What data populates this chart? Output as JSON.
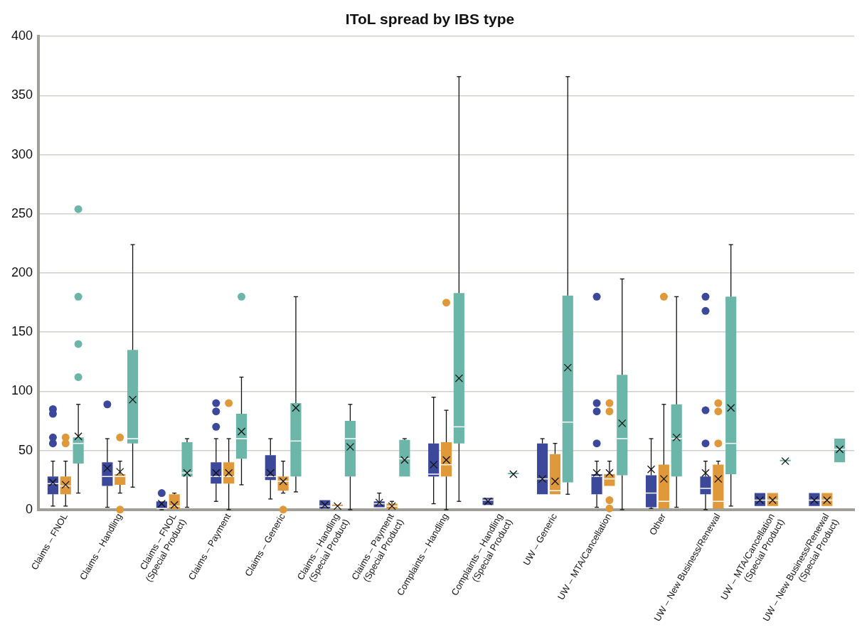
{
  "chart_data": {
    "type": "box",
    "title": "IToL spread by IBS type",
    "categories": [
      "Claims – FNOL",
      "Claims – Handling",
      "Claims – FNOL (Special Product)",
      "Claims – Payment",
      "Claims – Generic",
      "Claims – Handling (Special Product)",
      "Claims – Payment (Special Product)",
      "Complaints – Handling",
      "Complaints – Handling (Special Product)",
      "UW – Generic",
      "UW – MTA/Cancellation",
      "Other",
      "UW – New Business/Renewal",
      "UW – MTA/Cancellation (Special Product)",
      "UW – New Business/Renewal (Special Product)"
    ],
    "ylim": [
      0,
      400
    ],
    "yticks": [
      0,
      50,
      100,
      150,
      200,
      250,
      300,
      350,
      400
    ],
    "grid": "y",
    "legend": false,
    "marker": "cross",
    "series": [
      {
        "color": "#3c4899",
        "boxes": [
          {
            "low": 3,
            "q1": 13,
            "median": 22,
            "q3": 28,
            "high": 41,
            "mean": 23,
            "outliers": [
              85,
              81,
              61,
              56
            ]
          },
          {
            "low": 2,
            "q1": 20,
            "median": 28,
            "q3": 40,
            "high": 60,
            "mean": 35,
            "outliers": [
              89
            ]
          },
          {
            "low": 0,
            "q1": 1,
            "median": 1,
            "q3": 7,
            "high": 7,
            "mean": 5,
            "outliers": [
              14
            ]
          },
          {
            "low": 7,
            "q1": 22,
            "median": 28,
            "q3": 40,
            "high": 60,
            "mean": 31,
            "outliers": [
              90,
              83,
              70
            ]
          },
          {
            "low": 9,
            "q1": 25,
            "median": 28,
            "q3": 46,
            "high": 60,
            "mean": 31
          },
          {
            "low": 1,
            "q1": 1,
            "median": 3,
            "q3": 8,
            "high": 8,
            "mean": 4
          },
          {
            "low": 2,
            "q1": 2,
            "median": 5,
            "q3": 7,
            "high": 14,
            "mean": 6
          },
          {
            "low": 5,
            "q1": 28,
            "median": 30,
            "q3": 56,
            "high": 95,
            "mean": 38
          },
          {
            "low": 4,
            "q1": 4,
            "median": 8,
            "q3": 10,
            "high": 10,
            "mean": 7
          },
          {
            "low": 13,
            "q1": 13,
            "median": 26,
            "q3": 56,
            "high": 60,
            "mean": 26
          },
          {
            "low": 2,
            "q1": 13,
            "median": 28,
            "q3": 30,
            "high": 41,
            "mean": 31,
            "outliers": [
              180,
              90,
              83,
              56
            ]
          },
          {
            "low": 1,
            "q1": 2,
            "median": 14,
            "q3": 29,
            "high": 60,
            "mean": 34
          },
          {
            "low": 0,
            "q1": 13,
            "median": 18,
            "q3": 28,
            "high": 41,
            "mean": 31,
            "outliers": [
              180,
              168,
              84,
              56
            ]
          },
          {
            "low": 3,
            "q1": 3,
            "median": 8,
            "q3": 14,
            "high": 14,
            "mean": 8
          },
          {
            "low": 3,
            "q1": 3,
            "median": 8,
            "q3": 14,
            "high": 14,
            "mean": 8
          }
        ]
      },
      {
        "color": "#df993a",
        "boxes": [
          {
            "low": 3,
            "q1": 13,
            "median": 20,
            "q3": 28,
            "high": 41,
            "mean": 21,
            "outliers": [
              61,
              56
            ]
          },
          {
            "low": 14,
            "q1": 21,
            "median": 28,
            "q3": 30,
            "high": 41,
            "mean": 32,
            "outliers": [
              61,
              0
            ]
          },
          {
            "low": 0,
            "q1": 0,
            "median": 3,
            "q3": 13,
            "high": 14,
            "mean": 4
          },
          {
            "low": 0,
            "q1": 22,
            "median": 28,
            "q3": 40,
            "high": 60,
            "mean": 31,
            "outliers": [
              90
            ]
          },
          {
            "low": 14,
            "q1": 16,
            "median": 24,
            "q3": 28,
            "high": 41,
            "mean": 24,
            "outliers": [
              0
            ]
          },
          {
            "low": 3,
            "q1": 3,
            "median": 3,
            "q3": 3,
            "high": 3,
            "mean": 3
          },
          {
            "low": 0,
            "q1": 0,
            "median": 3,
            "q3": 5,
            "high": 7,
            "mean": 3
          },
          {
            "low": 0,
            "q1": 28,
            "median": 38,
            "q3": 57,
            "high": 84,
            "mean": 42,
            "outliers": [
              175
            ]
          },
          null,
          {
            "low": 13,
            "q1": 13,
            "median": 16,
            "q3": 47,
            "high": 56,
            "mean": 24
          },
          {
            "low": 20,
            "q1": 20,
            "median": 26,
            "q3": 30,
            "high": 41,
            "mean": 31,
            "outliers": [
              90,
              83,
              8,
              1
            ]
          },
          {
            "low": 1,
            "q1": 1,
            "median": 7,
            "q3": 38,
            "high": 89,
            "mean": 26,
            "outliers": [
              180
            ]
          },
          {
            "low": 1,
            "q1": 1,
            "median": 7,
            "q3": 38,
            "high": 41,
            "mean": 26,
            "outliers": [
              90,
              83,
              56
            ]
          },
          {
            "low": 3,
            "q1": 3,
            "median": 8,
            "q3": 14,
            "high": 14,
            "mean": 8
          },
          {
            "low": 3,
            "q1": 3,
            "median": 8,
            "q3": 14,
            "high": 14,
            "mean": 8
          }
        ]
      },
      {
        "color": "#6bb6a8",
        "boxes": [
          {
            "low": 14,
            "q1": 39,
            "median": 56,
            "q3": 61,
            "high": 89,
            "mean": 62,
            "outliers": [
              254,
              180,
              140,
              112
            ]
          },
          {
            "low": 19,
            "q1": 56,
            "median": 60,
            "q3": 135,
            "high": 224,
            "mean": 93
          },
          {
            "low": 2,
            "q1": 28,
            "median": 31,
            "q3": 57,
            "high": 60,
            "mean": 31
          },
          {
            "low": 21,
            "q1": 43,
            "median": 60,
            "q3": 81,
            "high": 112,
            "mean": 66,
            "outliers": [
              180
            ]
          },
          {
            "low": 15,
            "q1": 28,
            "median": 58,
            "q3": 90,
            "high": 180,
            "mean": 86
          },
          {
            "low": 0,
            "q1": 28,
            "median": 60,
            "q3": 75,
            "high": 89,
            "mean": 53
          },
          {
            "low": 28,
            "q1": 28,
            "median": 43,
            "q3": 59,
            "high": 60,
            "mean": 42
          },
          {
            "low": 7,
            "q1": 56,
            "median": 70,
            "q3": 183,
            "high": 366,
            "mean": 111
          },
          {
            "low": 30,
            "q1": 30,
            "median": 30,
            "q3": 30,
            "high": 30,
            "mean": 30
          },
          {
            "low": 13,
            "q1": 23,
            "median": 74,
            "q3": 181,
            "high": 366,
            "mean": 120
          },
          {
            "low": 0,
            "q1": 29,
            "median": 60,
            "q3": 114,
            "high": 195,
            "mean": 73
          },
          {
            "low": 2,
            "q1": 28,
            "median": 60,
            "q3": 89,
            "high": 180,
            "mean": 61
          },
          {
            "low": 3,
            "q1": 30,
            "median": 56,
            "q3": 180,
            "high": 224,
            "mean": 86
          },
          {
            "low": 41,
            "q1": 41,
            "median": 41,
            "q3": 41,
            "high": 41,
            "mean": 41
          },
          {
            "low": 40,
            "q1": 40,
            "median": 51,
            "q3": 60,
            "high": 60,
            "mean": 51
          }
        ]
      }
    ]
  }
}
